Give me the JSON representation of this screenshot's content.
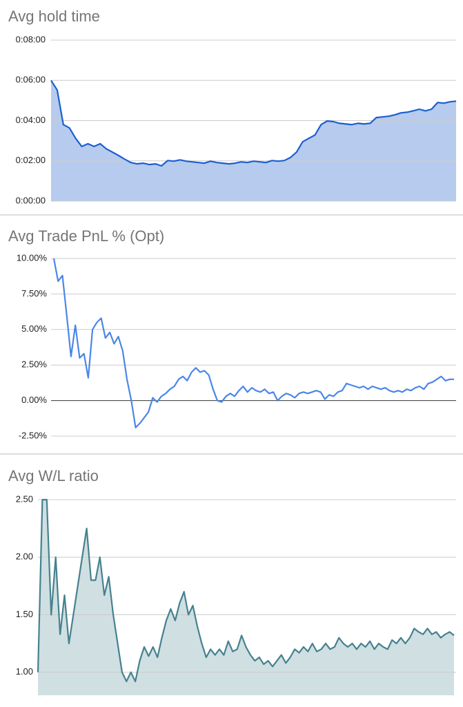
{
  "chart_data": [
    {
      "type": "area",
      "title": "Avg hold time",
      "color": "#1a5fd0",
      "fill_color": "#b7cbef",
      "ylim": [
        0,
        480
      ],
      "yticks": [
        {
          "value": 0,
          "label": "0:00:00"
        },
        {
          "value": 120,
          "label": "0:02:00"
        },
        {
          "value": 240,
          "label": "0:04:00"
        },
        {
          "value": 360,
          "label": "0:06:00"
        },
        {
          "value": 480,
          "label": "0:08:00"
        }
      ],
      "grid": true,
      "values": [
        360,
        331,
        228,
        218,
        187,
        163,
        171,
        163,
        171,
        156,
        146,
        136,
        125,
        115,
        111,
        113,
        109,
        111,
        105,
        121,
        119,
        123,
        119,
        117,
        115,
        113,
        119,
        115,
        113,
        111,
        113,
        117,
        115,
        119,
        117,
        115,
        121,
        119,
        121,
        130,
        146,
        177,
        187,
        197,
        228,
        239,
        237,
        232,
        230,
        228,
        232,
        230,
        232,
        249,
        251,
        253,
        257,
        263,
        265,
        269,
        274,
        269,
        274,
        294,
        292,
        296,
        298
      ]
    },
    {
      "type": "line",
      "title": "Avg Trade PnL % (Opt)",
      "color": "#4a86e8",
      "ylim": [
        -2.5,
        10
      ],
      "yticks": [
        {
          "value": -2.5,
          "label": "-2.50%"
        },
        {
          "value": 0,
          "label": "0.00%"
        },
        {
          "value": 2.5,
          "label": "2.50%"
        },
        {
          "value": 5,
          "label": "5.00%"
        },
        {
          "value": 7.5,
          "label": "7.50%"
        },
        {
          "value": 10,
          "label": "10.00%"
        }
      ],
      "grid": true,
      "values": [
        10.0,
        8.4,
        8.8,
        6,
        3.1,
        5.3,
        3.0,
        3.3,
        1.6,
        5.0,
        5.5,
        5.8,
        4.4,
        4.8,
        4.0,
        4.5,
        3.5,
        1.5,
        0,
        -1.9,
        -1.6,
        -1.2,
        -0.8,
        0.2,
        -0.1,
        0.3,
        0.5,
        0.8,
        1.0,
        1.5,
        1.7,
        1.4,
        2.0,
        2.3,
        2.0,
        2.1,
        1.8,
        0.8,
        0,
        -0.1,
        0.3,
        0.5,
        0.3,
        0.7,
        1.0,
        0.6,
        0.9,
        0.7,
        0.6,
        0.8,
        0.5,
        0.6,
        0,
        0.3,
        0.5,
        0.4,
        0.2,
        0.5,
        0.6,
        0.5,
        0.6,
        0.7,
        0.6,
        0.1,
        0.4,
        0.3,
        0.6,
        0.7,
        1.2,
        1.1,
        1.0,
        0.9,
        1.0,
        0.8,
        1.0,
        0.9,
        0.8,
        0.9,
        0.7,
        0.6,
        0.7,
        0.6,
        0.8,
        0.7,
        0.9,
        1.0,
        0.8,
        1.2,
        1.3,
        1.5,
        1.7,
        1.4,
        1.5,
        1.5
      ]
    },
    {
      "type": "area",
      "title": "Avg W/L ratio",
      "color": "#45818e",
      "fill_color": "#d0dfe2",
      "ylim": [
        0.8,
        2.5
      ],
      "yticks": [
        {
          "value": 1,
          "label": "1.00"
        },
        {
          "value": 1.5,
          "label": "1.50"
        },
        {
          "value": 2,
          "label": "2.00"
        },
        {
          "value": 2.5,
          "label": "2.50"
        }
      ],
      "grid": true,
      "values": [
        1.0,
        2.5,
        2.5,
        1.5,
        2.0,
        1.33,
        1.67,
        1.25,
        1.5,
        1.75,
        2.0,
        2.25,
        1.8,
        1.8,
        2.0,
        1.67,
        1.83,
        1.5,
        1.25,
        1.0,
        0.92,
        1.0,
        0.92,
        1.1,
        1.22,
        1.14,
        1.22,
        1.13,
        1.3,
        1.45,
        1.55,
        1.45,
        1.6,
        1.7,
        1.5,
        1.58,
        1.4,
        1.25,
        1.13,
        1.2,
        1.15,
        1.2,
        1.15,
        1.27,
        1.18,
        1.2,
        1.32,
        1.22,
        1.15,
        1.1,
        1.13,
        1.07,
        1.1,
        1.05,
        1.1,
        1.15,
        1.08,
        1.13,
        1.2,
        1.17,
        1.22,
        1.18,
        1.25,
        1.18,
        1.2,
        1.25,
        1.2,
        1.22,
        1.3,
        1.25,
        1.22,
        1.25,
        1.2,
        1.25,
        1.22,
        1.27,
        1.2,
        1.25,
        1.22,
        1.2,
        1.28,
        1.25,
        1.3,
        1.25,
        1.3,
        1.38,
        1.35,
        1.33,
        1.38,
        1.33,
        1.35,
        1.3,
        1.33,
        1.35,
        1.32
      ]
    }
  ]
}
